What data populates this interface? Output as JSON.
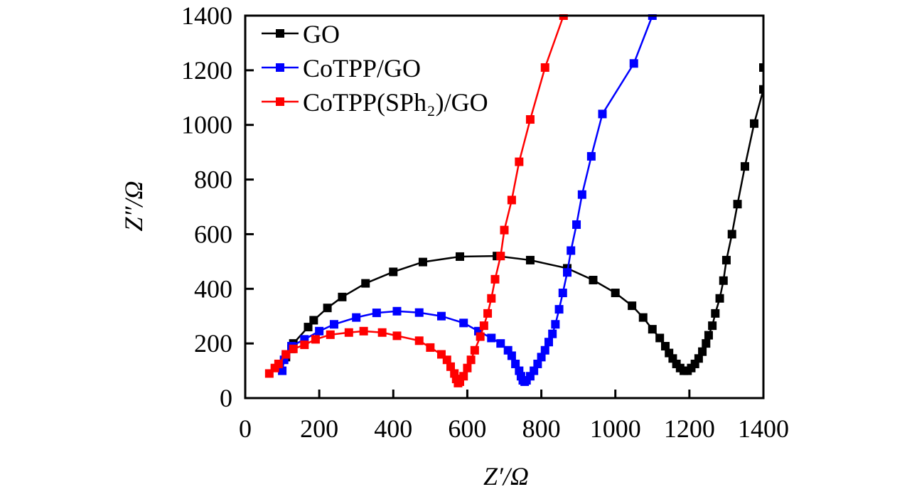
{
  "chart_data": {
    "type": "line",
    "xlabel": "Z′/Ω",
    "ylabel": "Z″/Ω",
    "xlim": [
      0,
      1400
    ],
    "ylim": [
      0,
      1400
    ],
    "xticks": [
      0,
      200,
      400,
      600,
      800,
      1000,
      1200,
      1400
    ],
    "yticks": [
      0,
      200,
      400,
      600,
      800,
      1000,
      1200,
      1400
    ],
    "grid": false,
    "legend_position": "top-left",
    "marker": "square",
    "series": [
      {
        "name": "GO",
        "color": "#000000",
        "points": [
          [
            110,
            150
          ],
          [
            125,
            180
          ],
          [
            130,
            200
          ],
          [
            170,
            260
          ],
          [
            185,
            285
          ],
          [
            222,
            330
          ],
          [
            262,
            370
          ],
          [
            325,
            420
          ],
          [
            400,
            462
          ],
          [
            480,
            498
          ],
          [
            580,
            518
          ],
          [
            680,
            520
          ],
          [
            770,
            505
          ],
          [
            870,
            475
          ],
          [
            940,
            432
          ],
          [
            1000,
            385
          ],
          [
            1045,
            338
          ],
          [
            1075,
            295
          ],
          [
            1100,
            252
          ],
          [
            1120,
            220
          ],
          [
            1135,
            190
          ],
          [
            1145,
            165
          ],
          [
            1155,
            145
          ],
          [
            1165,
            125
          ],
          [
            1175,
            110
          ],
          [
            1185,
            100
          ],
          [
            1195,
            100
          ],
          [
            1205,
            110
          ],
          [
            1215,
            125
          ],
          [
            1225,
            145
          ],
          [
            1235,
            170
          ],
          [
            1245,
            200
          ],
          [
            1252,
            230
          ],
          [
            1262,
            265
          ],
          [
            1270,
            310
          ],
          [
            1282,
            365
          ],
          [
            1292,
            430
          ],
          [
            1300,
            505
          ],
          [
            1315,
            600
          ],
          [
            1330,
            710
          ],
          [
            1350,
            848
          ],
          [
            1375,
            1005
          ],
          [
            1400,
            1130
          ],
          [
            1400,
            1210
          ]
        ]
      },
      {
        "name": "CoTPP/GO",
        "color": "#0000ff",
        "points": [
          [
            100,
            100
          ],
          [
            105,
            140
          ],
          [
            110,
            160
          ],
          [
            125,
            190
          ],
          [
            160,
            215
          ],
          [
            200,
            245
          ],
          [
            240,
            270
          ],
          [
            300,
            295
          ],
          [
            355,
            312
          ],
          [
            410,
            318
          ],
          [
            470,
            313
          ],
          [
            530,
            300
          ],
          [
            590,
            275
          ],
          [
            630,
            245
          ],
          [
            665,
            220
          ],
          [
            690,
            200
          ],
          [
            710,
            175
          ],
          [
            720,
            155
          ],
          [
            730,
            125
          ],
          [
            740,
            100
          ],
          [
            745,
            80
          ],
          [
            750,
            65
          ],
          [
            755,
            60
          ],
          [
            760,
            65
          ],
          [
            770,
            80
          ],
          [
            780,
            100
          ],
          [
            790,
            125
          ],
          [
            800,
            150
          ],
          [
            810,
            175
          ],
          [
            820,
            205
          ],
          [
            830,
            235
          ],
          [
            838,
            270
          ],
          [
            848,
            325
          ],
          [
            858,
            385
          ],
          [
            870,
            460
          ],
          [
            880,
            540
          ],
          [
            895,
            635
          ],
          [
            910,
            745
          ],
          [
            935,
            885
          ],
          [
            965,
            1040
          ],
          [
            1050,
            1225
          ],
          [
            1100,
            1400
          ]
        ]
      },
      {
        "name": "CoTPP(SPh₂)/GO",
        "color": "#ff0000",
        "points": [
          [
            65,
            90
          ],
          [
            80,
            110
          ],
          [
            90,
            125
          ],
          [
            110,
            160
          ],
          [
            130,
            180
          ],
          [
            160,
            195
          ],
          [
            190,
            215
          ],
          [
            230,
            232
          ],
          [
            280,
            240
          ],
          [
            320,
            245
          ],
          [
            370,
            240
          ],
          [
            410,
            228
          ],
          [
            470,
            210
          ],
          [
            500,
            185
          ],
          [
            530,
            160
          ],
          [
            545,
            140
          ],
          [
            555,
            115
          ],
          [
            565,
            90
          ],
          [
            570,
            70
          ],
          [
            575,
            55
          ],
          [
            580,
            60
          ],
          [
            590,
            80
          ],
          [
            600,
            110
          ],
          [
            610,
            140
          ],
          [
            620,
            175
          ],
          [
            635,
            225
          ],
          [
            645,
            265
          ],
          [
            655,
            310
          ],
          [
            665,
            365
          ],
          [
            675,
            435
          ],
          [
            690,
            520
          ],
          [
            700,
            615
          ],
          [
            720,
            725
          ],
          [
            740,
            865
          ],
          [
            770,
            1020
          ],
          [
            810,
            1210
          ],
          [
            860,
            1400
          ]
        ]
      }
    ]
  }
}
